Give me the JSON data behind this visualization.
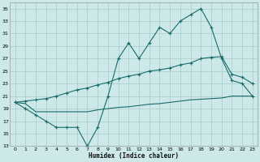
{
  "title": "",
  "xlabel": "Humidex (Indice chaleur)",
  "ylabel": "",
  "background_color": "#cce8e8",
  "grid_color": "#aacccc",
  "line_color": "#1a6b6b",
  "xlim": [
    -0.5,
    23.5
  ],
  "ylim": [
    13,
    36
  ],
  "yticks": [
    13,
    15,
    17,
    19,
    21,
    23,
    25,
    27,
    29,
    31,
    33,
    35
  ],
  "xticks": [
    0,
    1,
    2,
    3,
    4,
    5,
    6,
    7,
    8,
    9,
    10,
    11,
    12,
    13,
    14,
    15,
    16,
    17,
    18,
    19,
    20,
    21,
    22,
    23
  ],
  "line1_x": [
    0,
    1,
    2,
    3,
    4,
    5,
    6,
    7,
    8,
    9,
    10,
    11,
    12,
    13,
    14,
    15,
    16,
    17,
    18,
    19,
    20,
    21,
    22,
    23
  ],
  "line1_y": [
    20,
    19,
    18,
    17,
    16,
    16,
    16,
    13,
    16,
    21,
    27,
    29.5,
    27,
    29.5,
    32,
    31,
    33,
    34,
    35,
    32,
    27,
    23.5,
    23,
    21
  ],
  "line2_x": [
    0,
    1,
    2,
    3,
    4,
    5,
    6,
    7,
    8,
    9,
    10,
    11,
    12,
    13,
    14,
    15,
    16,
    17,
    18,
    19,
    20,
    21,
    22,
    23
  ],
  "line2_y": [
    20,
    20.2,
    20.4,
    20.6,
    21,
    21.5,
    22,
    22.3,
    22.8,
    23.2,
    23.8,
    24.2,
    24.5,
    25,
    25.2,
    25.5,
    26,
    26.3,
    27,
    27.2,
    27.3,
    24.5,
    24,
    23
  ],
  "line3_x": [
    0,
    1,
    2,
    3,
    4,
    5,
    6,
    7,
    8,
    9,
    10,
    11,
    12,
    13,
    14,
    15,
    16,
    17,
    18,
    19,
    20,
    21,
    22,
    23
  ],
  "line3_y": [
    20,
    19.8,
    18.5,
    18.5,
    18.5,
    18.5,
    18.5,
    18.5,
    18.8,
    19,
    19.2,
    19.3,
    19.5,
    19.7,
    19.8,
    20,
    20.2,
    20.4,
    20.5,
    20.6,
    20.7,
    21,
    21,
    21
  ]
}
